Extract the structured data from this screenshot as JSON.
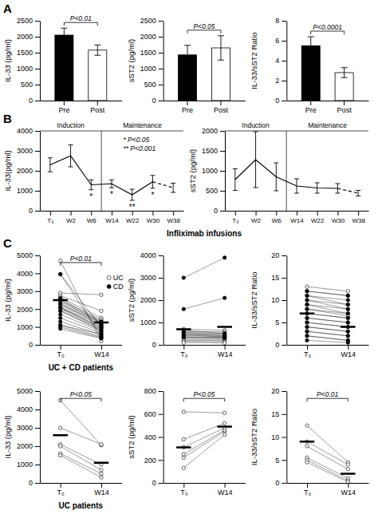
{
  "chart_data": [
    {
      "type": "bar",
      "title": "A",
      "categories": [
        "Pre",
        "Post"
      ],
      "values": [
        2050,
        1580
      ],
      "errors": [
        220,
        160
      ],
      "colors": [
        "#000000",
        "#ffffff"
      ],
      "ylabel": "IL-33 (pg/ml)",
      "ylim": [
        0,
        2500
      ],
      "yticks": [
        0,
        500,
        1000,
        1500,
        2000,
        2500
      ],
      "brackets": [
        {
          "text": "P<0.01",
          "from": "Pre",
          "to": "Post"
        }
      ]
    },
    {
      "type": "bar",
      "categories": [
        "Pre",
        "Post"
      ],
      "values": [
        1430,
        1650
      ],
      "errors": [
        300,
        380
      ],
      "colors": [
        "#000000",
        "#ffffff"
      ],
      "ylabel": "sST2 (pg/ml)",
      "ylim": [
        0,
        2500
      ],
      "yticks": [
        0,
        500,
        1000,
        1500,
        2000,
        2500
      ],
      "brackets": [
        {
          "text": "P<0.05",
          "from": "Pre",
          "to": "Post"
        }
      ]
    },
    {
      "type": "bar",
      "categories": [
        "Pre",
        "Post"
      ],
      "values": [
        5.5,
        2.8
      ],
      "errors": [
        0.9,
        0.5
      ],
      "colors": [
        "#000000",
        "#ffffff"
      ],
      "ylabel": "IL-33/sST2 Ratio",
      "ylim": [
        0,
        8
      ],
      "yticks": [
        0,
        2,
        4,
        6,
        8
      ],
      "brackets": [
        {
          "text": "P<0.0001",
          "from": "Pre",
          "to": "Post"
        }
      ]
    },
    {
      "type": "line",
      "title": "B",
      "xlabel": "Infliximab infusions",
      "categories": [
        "T₀",
        "W2",
        "W6",
        "W14",
        "W22",
        "W30",
        "W38"
      ],
      "values": [
        2300,
        2750,
        1300,
        1350,
        800,
        1450,
        1150
      ],
      "errors": [
        350,
        550,
        250,
        200,
        280,
        320,
        230
      ],
      "stars": [
        null,
        null,
        "*",
        "*",
        "**",
        "*",
        null
      ],
      "color": "#000000",
      "ylabel": "IL-33(pg/ml)",
      "ylim": [
        0,
        4000
      ],
      "yticks": [
        0,
        1000,
        2000,
        3000,
        4000
      ],
      "phases": [
        {
          "text": "Induction",
          "from": "T₀",
          "to": "W6"
        },
        {
          "text": "Maintenance",
          "from": "W14",
          "to": "W38"
        }
      ],
      "annotations": [
        "* P<0.05",
        "** P<0.001"
      ]
    },
    {
      "type": "line",
      "categories": [
        "T₀",
        "W2",
        "W6",
        "W14",
        "W22",
        "W30",
        "W38"
      ],
      "values": [
        780,
        1280,
        850,
        620,
        570,
        560,
        440
      ],
      "errors": [
        270,
        700,
        350,
        180,
        130,
        120,
        70
      ],
      "color": "#000000",
      "ylabel": "sST2 (pg/ml)",
      "ylim": [
        0,
        2000
      ],
      "yticks": [
        0,
        500,
        1000,
        1500,
        2000
      ],
      "phases": [
        {
          "text": "Induction",
          "from": "T₀",
          "to": "W6"
        },
        {
          "text": "Maintenance",
          "from": "W14",
          "to": "W38"
        }
      ]
    },
    {
      "type": "scatter",
      "title": "C",
      "subtitle": "UC + CD patients",
      "categories": [
        "T₀",
        "W14"
      ],
      "series": [
        {
          "name": "UC",
          "color": "#ffffff",
          "values": [
            [
              4700,
              200
            ],
            [
              3950,
              500
            ],
            [
              2900,
              2800
            ],
            [
              2750,
              1900
            ],
            [
              2650,
              1500
            ],
            [
              2500,
              1400
            ],
            [
              2400,
              1300
            ],
            [
              2300,
              1250
            ],
            [
              2200,
              1200
            ],
            [
              2100,
              1100
            ],
            [
              2050,
              1000
            ],
            [
              2000,
              900
            ],
            [
              1900,
              800
            ],
            [
              1100,
              600
            ]
          ]
        },
        {
          "name": "CD",
          "color": "#000000",
          "values": [
            [
              3950,
              1000
            ],
            [
              2600,
              1300
            ],
            [
              2500,
              1200
            ],
            [
              2300,
              1100
            ],
            [
              2100,
              950
            ],
            [
              1900,
              850
            ],
            [
              1700,
              750
            ],
            [
              1500,
              650
            ],
            [
              1300,
              550
            ],
            [
              1100,
              450
            ],
            [
              1000,
              400
            ],
            [
              900,
              350
            ]
          ]
        }
      ],
      "means": [
        2500,
        1250
      ],
      "ylabel": "IL-33 (pg/ml)",
      "ylim": [
        0,
        5000
      ],
      "yticks": [
        0,
        1000,
        2000,
        3000,
        4000,
        5000
      ],
      "brackets": [
        {
          "text": "P<0.01",
          "from": "T₀",
          "to": "W14"
        }
      ],
      "legend": "right"
    },
    {
      "type": "scatter",
      "categories": [
        "T₀",
        "W14"
      ],
      "series": [
        {
          "color": "#ffffff",
          "values": [
            [
              700,
              650
            ],
            [
              600,
              580
            ],
            [
              550,
              520
            ],
            [
              500,
              480
            ],
            [
              450,
              420
            ],
            [
              400,
              380
            ],
            [
              350,
              330
            ],
            [
              300,
              290
            ],
            [
              250,
              240
            ],
            [
              200,
              190
            ],
            [
              150,
              140
            ],
            [
              100,
              90
            ]
          ]
        },
        {
          "color": "#000000",
          "values": [
            [
              3000,
              3900
            ],
            [
              1600,
              2100
            ],
            [
              650,
              500
            ],
            [
              550,
              400
            ],
            [
              450,
              350
            ],
            [
              350,
              300
            ]
          ]
        }
      ],
      "means": [
        700,
        800
      ],
      "ylabel": "sST2 (pg/ml)",
      "ylim": [
        0,
        4000
      ],
      "yticks": [
        0,
        1000,
        2000,
        3000,
        4000
      ]
    },
    {
      "type": "scatter",
      "categories": [
        "T₀",
        "W14"
      ],
      "series": [
        {
          "color": "#ffffff",
          "values": [
            [
              13,
              12
            ],
            [
              12,
              11
            ],
            [
              11,
              9
            ],
            [
              10,
              8
            ],
            [
              9,
              7
            ],
            [
              8,
              6.5
            ],
            [
              7,
              6
            ],
            [
              6,
              5
            ],
            [
              5,
              4
            ],
            [
              4,
              3
            ],
            [
              3,
              2
            ],
            [
              2,
              1
            ]
          ]
        },
        {
          "color": "#000000",
          "values": [
            [
              12,
              11
            ],
            [
              11,
              10
            ],
            [
              10,
              9
            ],
            [
              9,
              8
            ],
            [
              8,
              7
            ],
            [
              7,
              6
            ],
            [
              6,
              5
            ],
            [
              5,
              4
            ],
            [
              4,
              3
            ],
            [
              3,
              2
            ],
            [
              2,
              1
            ],
            [
              1,
              0.5
            ]
          ]
        }
      ],
      "means": [
        7.0,
        4.0
      ],
      "ylabel": "IL-33/sST2 Ratio",
      "ylim": [
        0,
        20
      ],
      "yticks": [
        0,
        5,
        10,
        15,
        20
      ]
    },
    {
      "type": "scatter",
      "subtitle": "UC patients",
      "categories": [
        "T₀",
        "W14"
      ],
      "series": [
        {
          "color": "#ffffff",
          "values": [
            [
              4500,
              2050
            ],
            [
              3000,
              2100
            ],
            [
              2100,
              1000
            ],
            [
              2000,
              700
            ],
            [
              1600,
              500
            ],
            [
              1500,
              300
            ]
          ]
        }
      ],
      "means": [
        2600,
        1100
      ],
      "ylabel": "IL-33 (pg/ml)",
      "ylim": [
        0,
        5000
      ],
      "yticks": [
        0,
        1000,
        2000,
        3000,
        4000,
        5000
      ],
      "brackets": [
        {
          "text": "P<0.05",
          "from": "T₀",
          "to": "W14"
        }
      ]
    },
    {
      "type": "scatter",
      "categories": [
        "T₀",
        "W14"
      ],
      "series": [
        {
          "color": "#ffffff",
          "values": [
            [
              130,
              420
            ],
            [
              220,
              450
            ],
            [
              250,
              460
            ],
            [
              310,
              480
            ],
            [
              380,
              520
            ],
            [
              620,
              610
            ]
          ]
        }
      ],
      "means": [
        310,
        490
      ],
      "ylabel": "sST2 (pg/ml)",
      "ylim": [
        0,
        800
      ],
      "yticks": [
        0,
        200,
        400,
        600,
        800
      ],
      "brackets": [
        {
          "text": "P<0.05",
          "from": "T₀",
          "to": "W14"
        }
      ]
    },
    {
      "type": "scatter",
      "categories": [
        "T₀",
        "W14"
      ],
      "series": [
        {
          "color": "#ffffff",
          "values": [
            [
              12.5,
              4.5
            ],
            [
              9.0,
              4.0
            ],
            [
              8.0,
              3.0
            ],
            [
              5.5,
              1.0
            ],
            [
              5.0,
              0.5
            ],
            [
              4.5,
              0.2
            ]
          ]
        }
      ],
      "means": [
        9.0,
        2.0
      ],
      "ylabel": "IL-33/sST2 Ratio",
      "ylim": [
        0,
        20
      ],
      "yticks": [
        0,
        5,
        10,
        15,
        20
      ],
      "brackets": [
        {
          "text": "P<0.01",
          "from": "T₀",
          "to": "W14"
        }
      ]
    }
  ]
}
